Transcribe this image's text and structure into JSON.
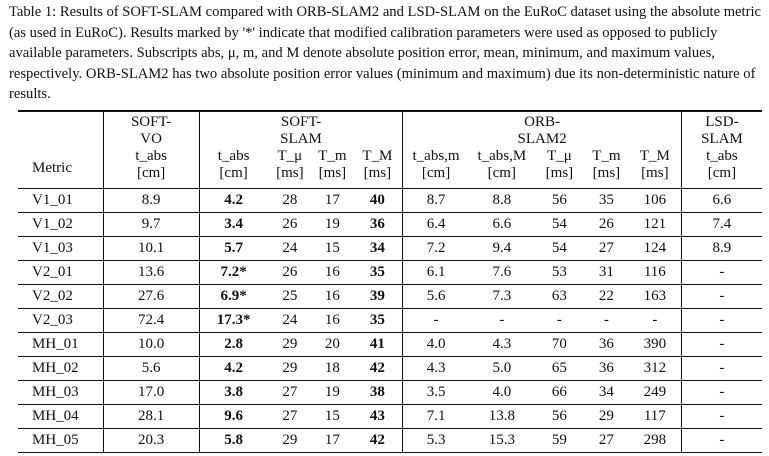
{
  "caption": "Table 1: Results of SOFT-SLAM compared with ORB-SLAM2 and LSD-SLAM on the EuRoC dataset using the absolute metric (as used in EuRoC). Results marked by '*' indicate that modified calibration parameters were used as opposed to publicly available parameters. Subscripts abs, μ, m, and M denote absolute position error, mean, minimum, and maximum values, respectively. ORB-SLAM2 has two absolute position error values (minimum and maximum) due its non-deterministic nature of results.",
  "groups": {
    "soft_vo": "SOFT-VO",
    "soft_slam": "SOFT-SLAM",
    "orb_slam2": "ORB-SLAM2",
    "lsd_slam": "LSD-SLAM"
  },
  "metric_label": "Metric",
  "columns": {
    "vo_tabs": "t_abs [cm]",
    "ss_tabs": "t_abs [cm]",
    "ss_tmu": "T_μ [ms]",
    "ss_tm": "T_m [ms]",
    "ss_tM": "T_M [ms]",
    "orb_tabs_m": "t_abs,m [cm]",
    "orb_tabs_M": "t_abs,M [cm]",
    "orb_tmu": "T_μ [ms]",
    "orb_tm": "T_m [ms]",
    "orb_tM": "T_M [ms]",
    "lsd_tabs": "t_abs [cm]"
  },
  "rows": [
    {
      "metric": "V1_01",
      "vo": "8.9",
      "ss_tabs": "4.2",
      "ss_tmu": "28",
      "ss_tm": "17",
      "ss_tM": "40",
      "orb_m": "8.7",
      "orb_M": "8.8",
      "orb_tmu": "56",
      "orb_tm": "35",
      "orb_tM": "106",
      "lsd": "6.6"
    },
    {
      "metric": "V1_02",
      "vo": "9.7",
      "ss_tabs": "3.4",
      "ss_tmu": "26",
      "ss_tm": "19",
      "ss_tM": "36",
      "orb_m": "6.4",
      "orb_M": "6.6",
      "orb_tmu": "54",
      "orb_tm": "26",
      "orb_tM": "121",
      "lsd": "7.4"
    },
    {
      "metric": "V1_03",
      "vo": "10.1",
      "ss_tabs": "5.7",
      "ss_tmu": "24",
      "ss_tm": "15",
      "ss_tM": "34",
      "orb_m": "7.2",
      "orb_M": "9.4",
      "orb_tmu": "54",
      "orb_tm": "27",
      "orb_tM": "124",
      "lsd": "8.9"
    },
    {
      "metric": "V2_01",
      "vo": "13.6",
      "ss_tabs": "7.2*",
      "ss_tmu": "26",
      "ss_tm": "16",
      "ss_tM": "35",
      "orb_m": "6.1",
      "orb_M": "7.6",
      "orb_tmu": "53",
      "orb_tm": "31",
      "orb_tM": "116",
      "lsd": "-"
    },
    {
      "metric": "V2_02",
      "vo": "27.6",
      "ss_tabs": "6.9*",
      "ss_tmu": "25",
      "ss_tm": "16",
      "ss_tM": "39",
      "orb_m": "5.6",
      "orb_M": "7.3",
      "orb_tmu": "63",
      "orb_tm": "22",
      "orb_tM": "163",
      "lsd": "-"
    },
    {
      "metric": "V2_03",
      "vo": "72.4",
      "ss_tabs": "17.3*",
      "ss_tmu": "24",
      "ss_tm": "16",
      "ss_tM": "35",
      "orb_m": "-",
      "orb_M": "-",
      "orb_tmu": "-",
      "orb_tm": "-",
      "orb_tM": "-",
      "lsd": "-"
    },
    {
      "metric": "MH_01",
      "vo": "10.0",
      "ss_tabs": "2.8",
      "ss_tmu": "29",
      "ss_tm": "20",
      "ss_tM": "41",
      "orb_m": "4.0",
      "orb_M": "4.3",
      "orb_tmu": "70",
      "orb_tm": "36",
      "orb_tM": "390",
      "lsd": "-"
    },
    {
      "metric": "MH_02",
      "vo": "5.6",
      "ss_tabs": "4.2",
      "ss_tmu": "29",
      "ss_tm": "18",
      "ss_tM": "42",
      "orb_m": "4.3",
      "orb_M": "5.0",
      "orb_tmu": "65",
      "orb_tm": "36",
      "orb_tM": "312",
      "lsd": "-"
    },
    {
      "metric": "MH_03",
      "vo": "17.0",
      "ss_tabs": "3.8",
      "ss_tmu": "27",
      "ss_tm": "19",
      "ss_tM": "38",
      "orb_m": "3.5",
      "orb_M": "4.0",
      "orb_tmu": "66",
      "orb_tm": "34",
      "orb_tM": "249",
      "lsd": "-"
    },
    {
      "metric": "MH_04",
      "vo": "28.1",
      "ss_tabs": "9.6",
      "ss_tmu": "27",
      "ss_tm": "15",
      "ss_tM": "43",
      "orb_m": "7.1",
      "orb_M": "13.8",
      "orb_tmu": "56",
      "orb_tm": "29",
      "orb_tM": "117",
      "lsd": "-"
    },
    {
      "metric": "MH_05",
      "vo": "20.3",
      "ss_tabs": "5.8",
      "ss_tmu": "29",
      "ss_tm": "17",
      "ss_tM": "42",
      "orb_m": "5.3",
      "orb_M": "15.3",
      "orb_tmu": "59",
      "orb_tm": "27",
      "orb_tM": "298",
      "lsd": "-"
    }
  ]
}
